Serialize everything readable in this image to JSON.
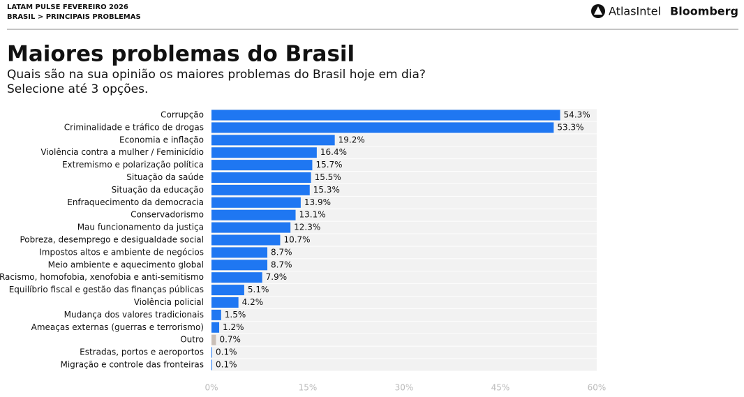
{
  "header": {
    "kicker": "LATAM PULSE FEVEREIRO 2026",
    "breadcrumb": "BRASIL > PRINCIPAIS PROBLEMAS",
    "logos": [
      "AtlasIntel",
      "Bloomberg"
    ]
  },
  "chart_data": {
    "type": "barh",
    "title": "Maiores problemas do Brasil",
    "subtitle": [
      "Quais são na sua opinião os maiores problemas do Brasil hoje em dia?",
      "Selecione até 3 opções."
    ],
    "categories": [
      "Corrupção",
      "Criminalidade e tráfico de drogas",
      "Economia e inflação",
      "Violência contra a mulher / Feminicídio",
      "Extremismo e polarização política",
      "Situação da saúde",
      "Situação da educação",
      "Enfraquecimento da democracia",
      "Conservadorismo",
      "Mau funcionamento da justiça",
      "Pobreza, desemprego e desigualdade social",
      "Impostos altos e ambiente de negócios",
      "Meio ambiente e aquecimento global",
      "Racismo, homofobia, xenofobia e anti-semitismo",
      "Equilíbrio fiscal e gestão das finanças públicas",
      "Violência policial",
      "Mudança dos valores tradicionais",
      "Ameaças externas (guerras e terrorismo)",
      "Outro",
      "Estradas, portos e aeroportos",
      "Migração e controle das fronteiras"
    ],
    "values": [
      54.3,
      53.3,
      19.2,
      16.4,
      15.7,
      15.5,
      15.3,
      13.9,
      13.1,
      12.3,
      10.7,
      8.7,
      8.7,
      7.9,
      5.1,
      4.2,
      1.5,
      1.2,
      0.7,
      0.1,
      0.1
    ],
    "value_labels": [
      "54.3%",
      "53.3%",
      "19.2%",
      "16.4%",
      "15.7%",
      "15.5%",
      "15.3%",
      "13.9%",
      "13.1%",
      "12.3%",
      "10.7%",
      "8.7%",
      "8.7%",
      "7.9%",
      "5.1%",
      "4.2%",
      "1.5%",
      "1.2%",
      "0.7%",
      "0.1%",
      "0.1%"
    ],
    "colors": [
      "#1f77f2",
      "#1f77f2",
      "#1f77f2",
      "#1f77f2",
      "#1f77f2",
      "#1f77f2",
      "#1f77f2",
      "#1f77f2",
      "#1f77f2",
      "#1f77f2",
      "#1f77f2",
      "#1f77f2",
      "#1f77f2",
      "#1f77f2",
      "#1f77f2",
      "#1f77f2",
      "#1f77f2",
      "#1f77f2",
      "#c9bfb7",
      "#1f77f2",
      "#1f77f2"
    ],
    "xlim": [
      0,
      60
    ],
    "xticks": [
      {
        "value": 0,
        "label": "0%"
      },
      {
        "value": 15,
        "label": "15%"
      },
      {
        "value": 30,
        "label": "30%"
      },
      {
        "value": 45,
        "label": "45%"
      },
      {
        "value": 60,
        "label": "60%"
      }
    ]
  }
}
